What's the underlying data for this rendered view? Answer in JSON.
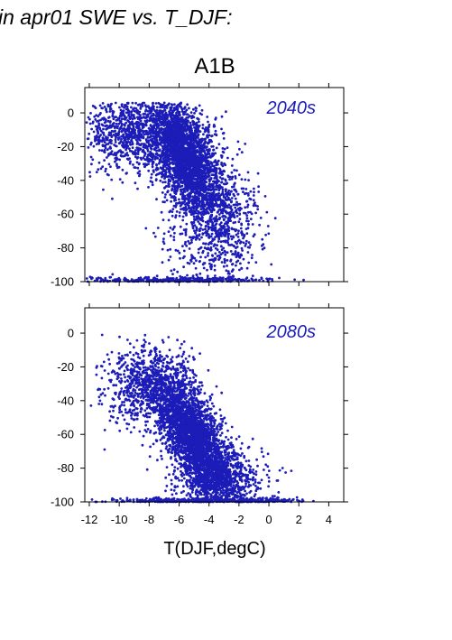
{
  "heading": "in apr01 SWE vs. T_DJF:",
  "scenario": "A1B",
  "colors": {
    "points": "#1c1cb8",
    "panel_label": "#1c1cb8",
    "frame": "#000000"
  },
  "chart_data": [
    {
      "type": "scatter",
      "panel_label": "2040s",
      "xlim": [
        -12.3,
        5.0
      ],
      "ylim": [
        -100,
        15
      ],
      "x_ticks": [
        -12,
        -10,
        -8,
        -6,
        -4,
        -2,
        0,
        2,
        4
      ],
      "y_ticks": [
        0,
        -20,
        -40,
        -60,
        -80,
        -100
      ],
      "grid": false,
      "cloud": {
        "approx_points": 5000,
        "trend": "SWE decreases as T_DJF increases; densest near x=-6..-4, y=-20..-50",
        "extent_x": [
          -12.2,
          3.0
        ],
        "extent_y": [
          -100,
          6
        ]
      }
    },
    {
      "type": "scatter",
      "panel_label": "2080s",
      "xlim": [
        -12.3,
        5.0
      ],
      "ylim": [
        -100,
        15
      ],
      "x_ticks": [
        -12,
        -10,
        -8,
        -6,
        -4,
        -2,
        0,
        2,
        4
      ],
      "x_tick_labels": [
        "-12",
        "-10",
        "-8",
        "-6",
        "-4",
        "-2",
        "0",
        "2",
        "4"
      ],
      "y_ticks": [
        0,
        -20,
        -40,
        -60,
        -80,
        -100
      ],
      "xlabel": "T(DJF,degC)",
      "grid": false,
      "cloud": {
        "approx_points": 5000,
        "trend": "SWE decreases as T_DJF increases; densest near x=-6..-3, y=-50..-90",
        "extent_x": [
          -12.2,
          3.0
        ],
        "extent_y": [
          -100,
          1
        ]
      }
    }
  ]
}
